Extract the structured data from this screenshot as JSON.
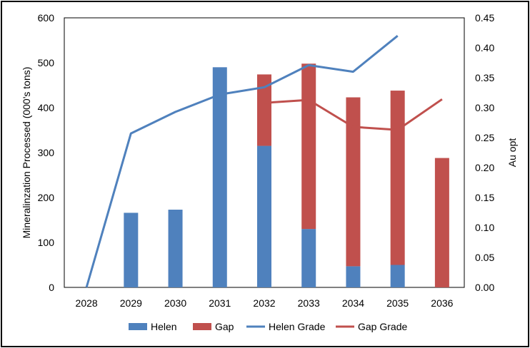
{
  "chart_data": {
    "type": "bar",
    "categories": [
      "2028",
      "2029",
      "2030",
      "2031",
      "2032",
      "2033",
      "2034",
      "2035",
      "2036"
    ],
    "stacked": true,
    "series": [
      {
        "name": "Helen",
        "kind": "bar",
        "axis": "left",
        "color": "#4F81BD",
        "values": [
          0,
          166,
          173,
          490,
          315,
          130,
          47,
          50,
          0
        ]
      },
      {
        "name": "Gap",
        "kind": "bar",
        "axis": "left",
        "color": "#C0504D",
        "values": [
          0,
          0,
          0,
          0,
          159,
          368,
          376,
          388,
          288
        ]
      },
      {
        "name": "Helen Grade",
        "kind": "line",
        "axis": "right",
        "color": "#4F81BD",
        "values": [
          0.0,
          0.257,
          0.293,
          0.322,
          0.334,
          0.371,
          0.36,
          0.42,
          null
        ]
      },
      {
        "name": "Gap Grade",
        "kind": "line",
        "axis": "right",
        "color": "#C0504D",
        "values": [
          null,
          null,
          null,
          null,
          0.308,
          0.313,
          0.268,
          0.263,
          0.314
        ]
      }
    ],
    "ylabel": "Mineralinzation Processed (000's tons)",
    "y2label": "Au opt",
    "ylim": [
      0,
      600
    ],
    "y2lim": [
      0,
      0.45
    ],
    "yticks": [
      "0",
      "100",
      "200",
      "300",
      "400",
      "500",
      "600"
    ],
    "y2ticks": [
      "0.00",
      "0.05",
      "0.10",
      "0.15",
      "0.20",
      "0.25",
      "0.30",
      "0.35",
      "0.40",
      "0.45"
    ],
    "grid": false,
    "legend": "bottom"
  }
}
